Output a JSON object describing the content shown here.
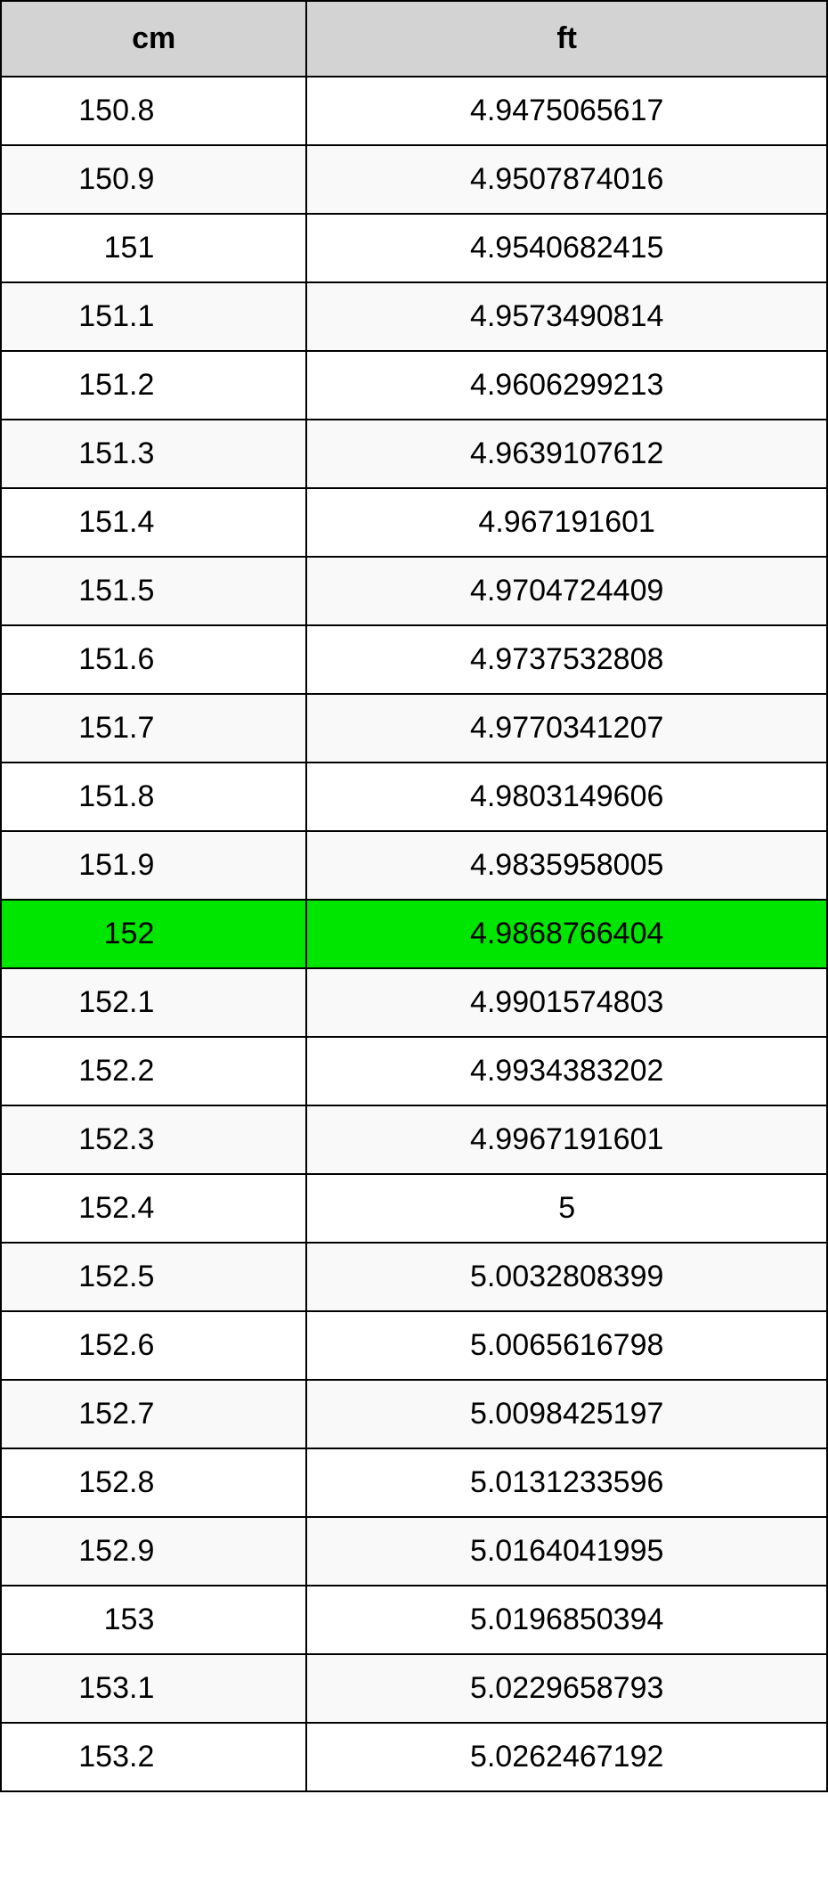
{
  "table": {
    "columns": [
      "cm",
      "ft"
    ],
    "header_bg": "#d3d3d3",
    "row_bg_even": "#ffffff",
    "row_bg_odd": "#f9f9f9",
    "highlight_bg": "#00e600",
    "highlight_index": 12,
    "border_color": "#000000",
    "text_color": "#000000",
    "col_widths": [
      "37%",
      "63%"
    ],
    "rows": [
      {
        "cm": "150.8",
        "ft": "4.9475065617"
      },
      {
        "cm": "150.9",
        "ft": "4.9507874016"
      },
      {
        "cm": "151",
        "ft": "4.9540682415"
      },
      {
        "cm": "151.1",
        "ft": "4.9573490814"
      },
      {
        "cm": "151.2",
        "ft": "4.9606299213"
      },
      {
        "cm": "151.3",
        "ft": "4.9639107612"
      },
      {
        "cm": "151.4",
        "ft": "4.967191601"
      },
      {
        "cm": "151.5",
        "ft": "4.9704724409"
      },
      {
        "cm": "151.6",
        "ft": "4.9737532808"
      },
      {
        "cm": "151.7",
        "ft": "4.9770341207"
      },
      {
        "cm": "151.8",
        "ft": "4.9803149606"
      },
      {
        "cm": "151.9",
        "ft": "4.9835958005"
      },
      {
        "cm": "152",
        "ft": "4.9868766404"
      },
      {
        "cm": "152.1",
        "ft": "4.9901574803"
      },
      {
        "cm": "152.2",
        "ft": "4.9934383202"
      },
      {
        "cm": "152.3",
        "ft": "4.9967191601"
      },
      {
        "cm": "152.4",
        "ft": "5"
      },
      {
        "cm": "152.5",
        "ft": "5.0032808399"
      },
      {
        "cm": "152.6",
        "ft": "5.0065616798"
      },
      {
        "cm": "152.7",
        "ft": "5.0098425197"
      },
      {
        "cm": "152.8",
        "ft": "5.0131233596"
      },
      {
        "cm": "152.9",
        "ft": "5.0164041995"
      },
      {
        "cm": "153",
        "ft": "5.0196850394"
      },
      {
        "cm": "153.1",
        "ft": "5.0229658793"
      },
      {
        "cm": "153.2",
        "ft": "5.0262467192"
      }
    ]
  }
}
